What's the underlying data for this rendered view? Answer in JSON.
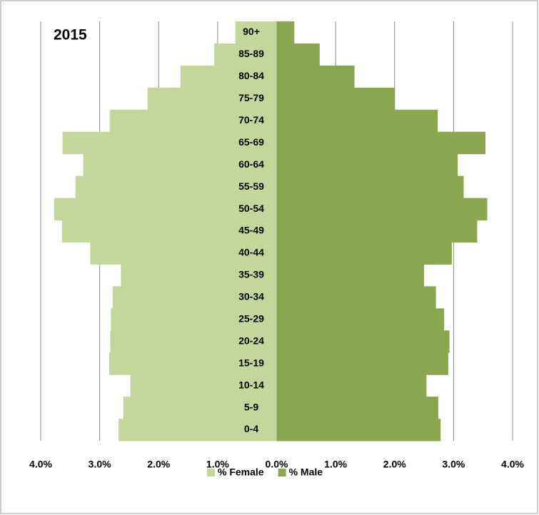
{
  "chart_data": {
    "type": "pyramid",
    "title": "2015",
    "categories": [
      "90+",
      "85-89",
      "80-84",
      "75-79",
      "70-74",
      "65-69",
      "60-64",
      "55-59",
      "50-54",
      "45-49",
      "40-44",
      "35-39",
      "30-34",
      "25-29",
      "20-24",
      "15-19",
      "10-14",
      "5-9",
      "0-4"
    ],
    "series": [
      {
        "name": "% Female",
        "color": "#c4d79b",
        "side": "left",
        "values": [
          0.7,
          1.06,
          1.63,
          2.19,
          2.83,
          3.63,
          3.28,
          3.41,
          3.77,
          3.64,
          3.16,
          2.64,
          2.78,
          2.81,
          2.82,
          2.84,
          2.48,
          2.6,
          2.68
        ]
      },
      {
        "name": "% Male",
        "color": "#8aa64e",
        "side": "right",
        "values": [
          0.3,
          0.73,
          1.32,
          2.0,
          2.73,
          3.54,
          3.07,
          3.17,
          3.57,
          3.4,
          2.97,
          2.5,
          2.7,
          2.84,
          2.93,
          2.91,
          2.54,
          2.74,
          2.78
        ]
      }
    ],
    "xlim": [
      -4,
      4
    ],
    "xticks": [
      {
        "value": -4,
        "label": "4.0%"
      },
      {
        "value": -3,
        "label": "3.0%"
      },
      {
        "value": -2,
        "label": "2.0%"
      },
      {
        "value": -1,
        "label": "1.0%"
      },
      {
        "value": 0,
        "label": "0.0%"
      },
      {
        "value": 1,
        "label": "1.0%"
      },
      {
        "value": 2,
        "label": "2.0%"
      },
      {
        "value": 3,
        "label": "3.0%"
      },
      {
        "value": 4,
        "label": "4.0%"
      }
    ],
    "grid": true,
    "legend": "bottom"
  }
}
